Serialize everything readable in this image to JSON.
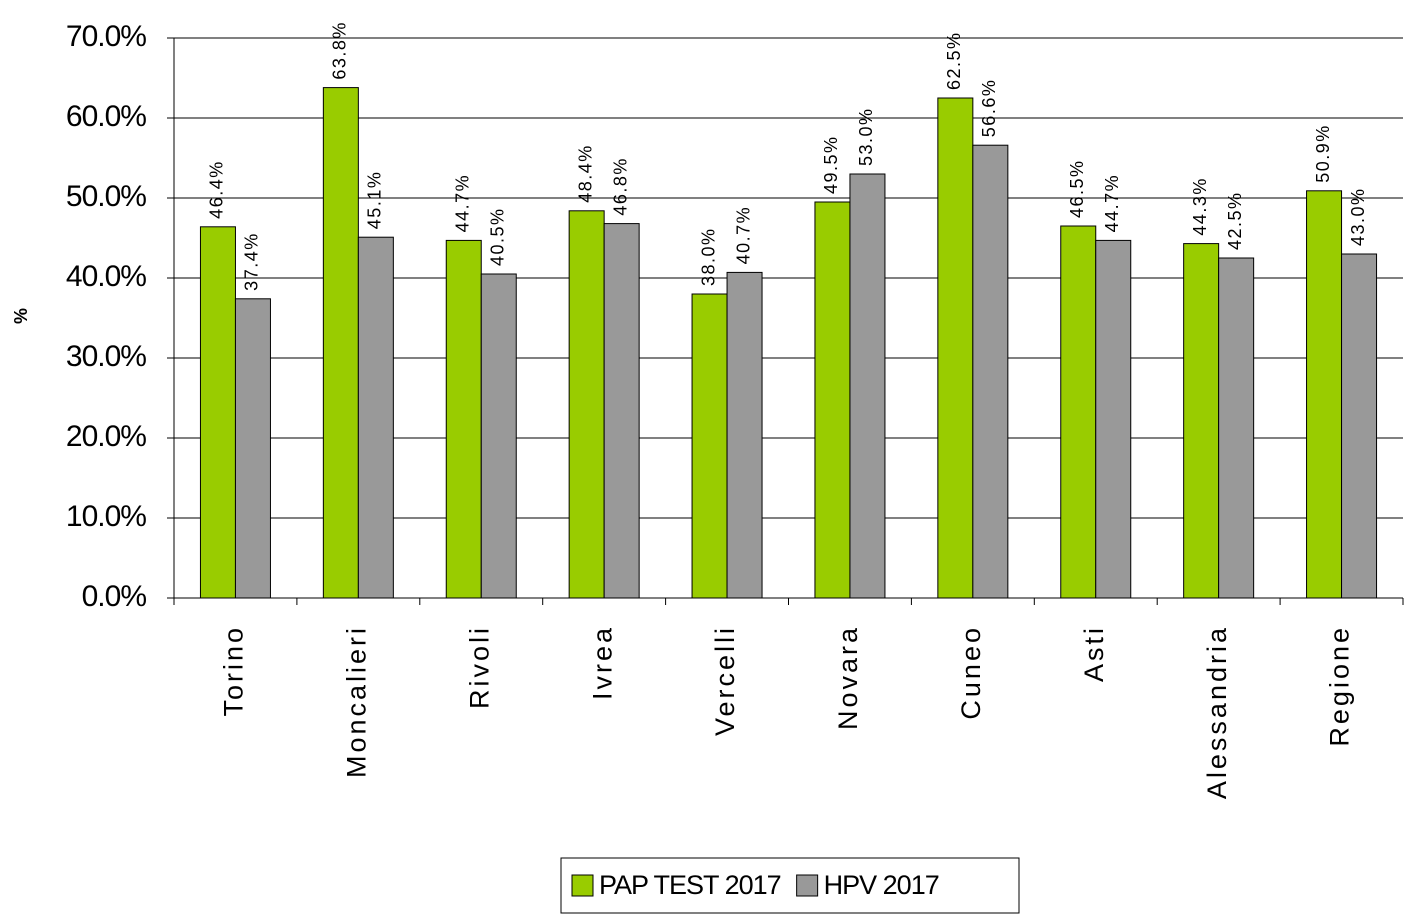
{
  "chart_data": {
    "type": "bar",
    "y_label": "%",
    "categories": [
      "Torino",
      "Moncalieri",
      "Rivoli",
      "Ivrea",
      "Vercelli",
      "Novara",
      "Cuneo",
      "Asti",
      "Alessandria",
      "Regione"
    ],
    "series": [
      {
        "name": "PAP TEST 2017",
        "color": "#99cc00",
        "values": [
          46.4,
          63.8,
          44.7,
          48.4,
          38.0,
          49.5,
          62.5,
          46.5,
          44.3,
          50.9
        ],
        "value_labels": [
          "46.4%",
          "63.8%",
          "44.7%",
          "48.4%",
          "38.0%",
          "49.5%",
          "62.5%",
          "46.5%",
          "44.3%",
          "50.9%"
        ]
      },
      {
        "name": "HPV 2017",
        "color": "#999999",
        "values": [
          37.4,
          45.1,
          40.5,
          46.8,
          40.7,
          53.0,
          56.6,
          44.7,
          42.5,
          43.0
        ],
        "value_labels": [
          "37.4%",
          "45.1%",
          "40.5%",
          "46.8%",
          "40.7%",
          "53.0%",
          "56.6%",
          "44.7%",
          "42.5%",
          "43.0%"
        ]
      }
    ],
    "ylim": [
      0,
      70
    ],
    "yticks": [
      {
        "value": 0,
        "label": "0.0%"
      },
      {
        "value": 10,
        "label": "10.0%"
      },
      {
        "value": 20,
        "label": "20.0%"
      },
      {
        "value": 30,
        "label": "30.0%"
      },
      {
        "value": 40,
        "label": "40.0%"
      },
      {
        "value": 50,
        "label": "50.0%"
      },
      {
        "value": 60,
        "label": "60.0%"
      },
      {
        "value": 70,
        "label": "70.0%"
      }
    ],
    "grid": true,
    "legend": "bottom"
  }
}
